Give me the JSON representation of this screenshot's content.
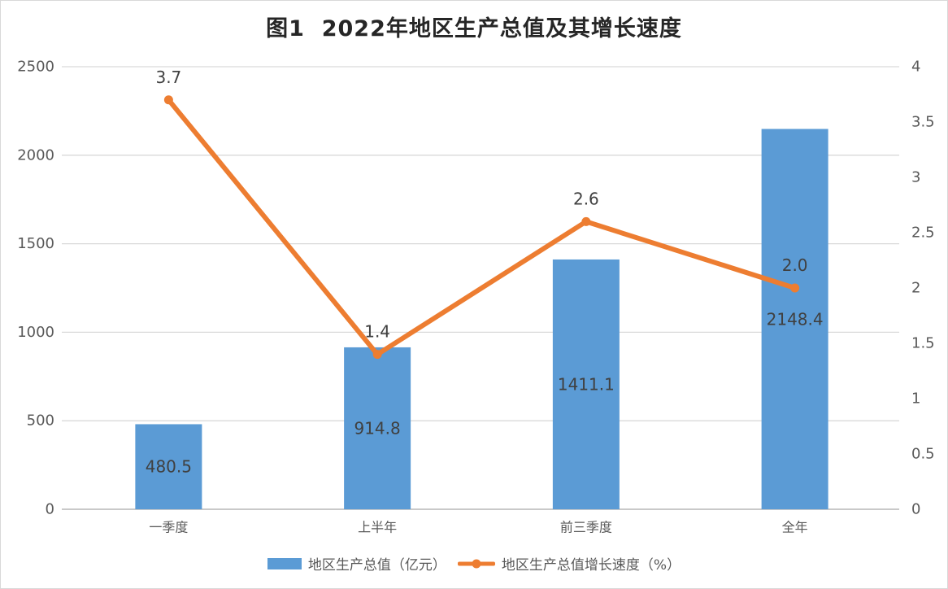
{
  "chart": {
    "title": "图1  2022年地区生产总值及其增长速度"
  },
  "chart_data": {
    "type": "bar+line combo, dual axis",
    "title": "图1  2022年地区生产总值及其增长速度",
    "categories": [
      "一季度",
      "上半年",
      "前三季度",
      "全年"
    ],
    "series": [
      {
        "name": "地区生产总值（亿元）",
        "type": "bar",
        "axis": "left",
        "color": "#5B9BD5",
        "values": [
          480.5,
          914.8,
          1411.1,
          2148.4
        ],
        "data_labels": [
          "480.5",
          "914.8",
          "1411.1",
          "2148.4"
        ]
      },
      {
        "name": "地区生产总值增长速度（%）",
        "type": "line",
        "axis": "right",
        "color": "#ED7D31",
        "values": [
          3.7,
          1.4,
          2.6,
          2.0
        ],
        "data_labels": [
          "3.7",
          "1.4",
          "2.6",
          "2.0"
        ]
      }
    ],
    "left_axis": {
      "min": 0,
      "max": 2500,
      "step": 500,
      "ticks": [
        "0",
        "500",
        "1000",
        "1500",
        "2000",
        "2500"
      ]
    },
    "right_axis": {
      "min": 0,
      "max": 4,
      "step": 0.5,
      "ticks": [
        "0",
        "0.5",
        "1",
        "1.5",
        "2",
        "2.5",
        "3",
        "3.5",
        "4"
      ]
    },
    "grid": true,
    "legend_position": "bottom",
    "colors": {
      "background": "#FFFFFF",
      "frame_border": "#D9D9D9",
      "gridline": "#D9D9D9",
      "axis_line": "#C9C9C9",
      "tick_label": "#595959",
      "data_label": "#404040",
      "title": "#262626"
    }
  }
}
